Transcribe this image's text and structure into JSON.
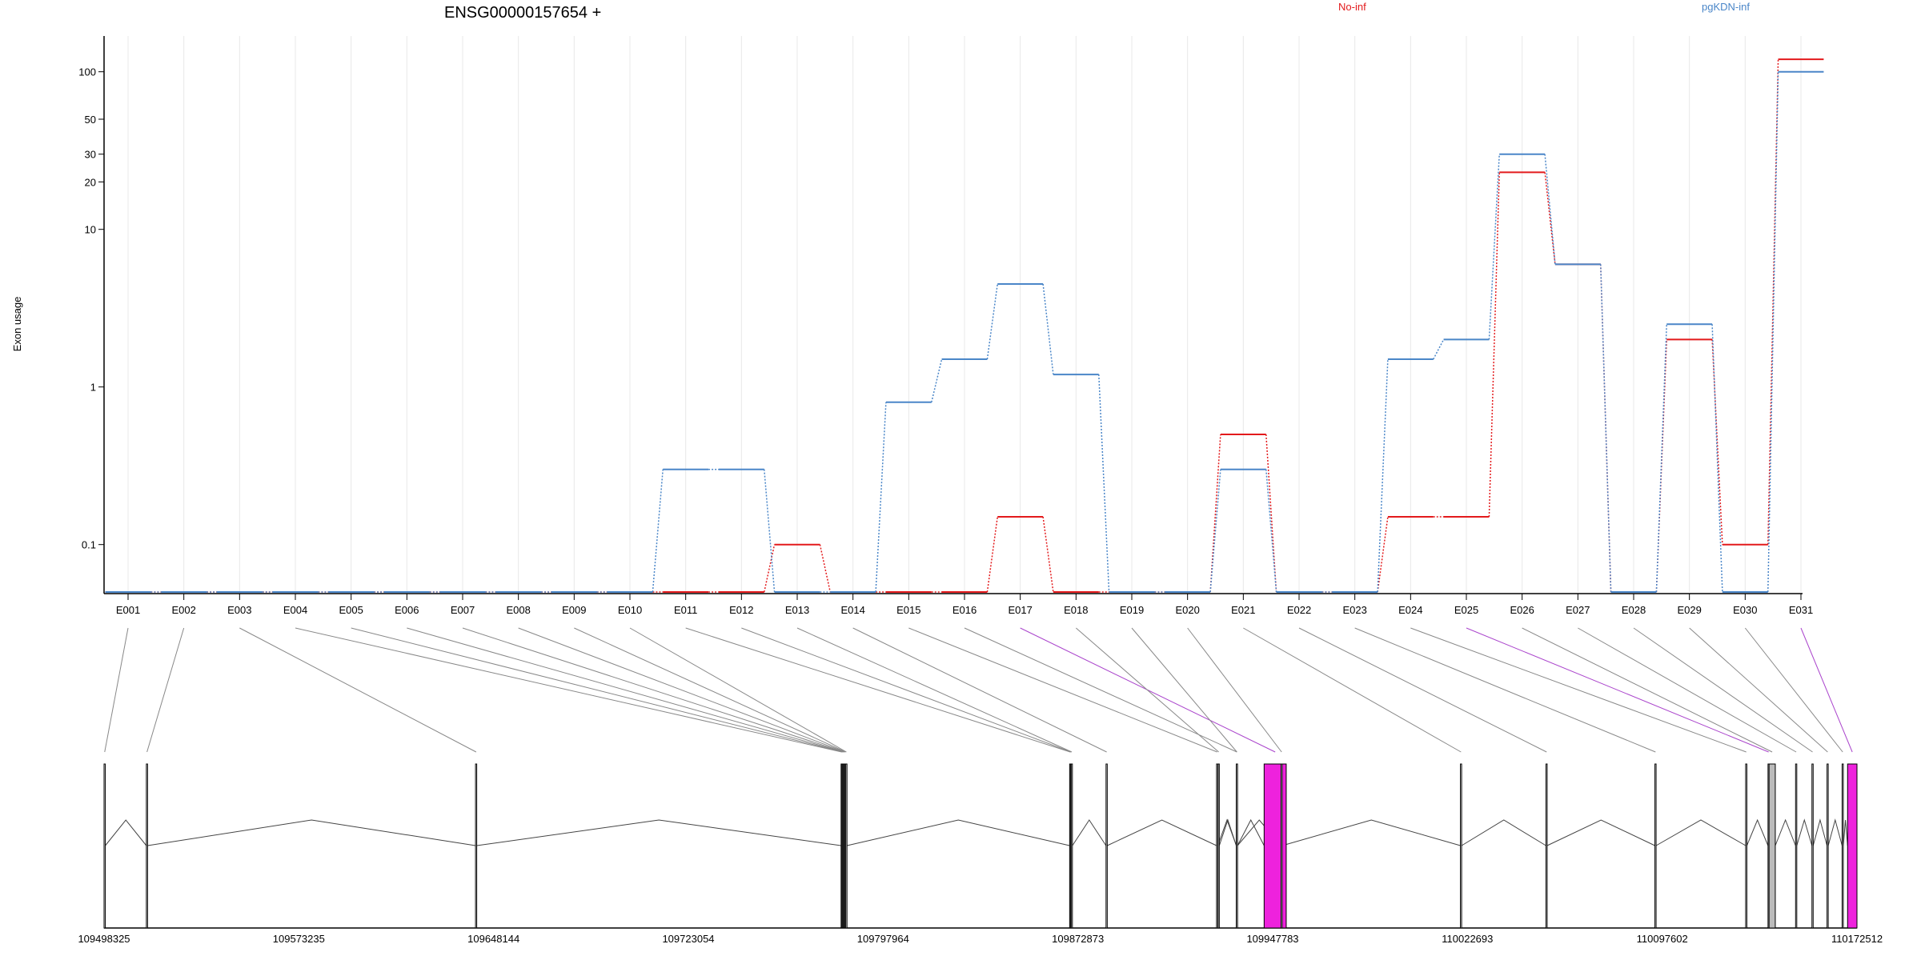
{
  "chart_data": {
    "type": "line",
    "title": "ENSG00000157654 +",
    "ylabel": "Exon usage",
    "y_scale": "log",
    "ylim": [
      0.05,
      150
    ],
    "y_ticks": [
      0.1,
      1,
      10,
      20,
      30,
      50,
      100
    ],
    "y_tick_labels": [
      "0.1",
      "1",
      "10",
      "20",
      "30",
      "50",
      "100"
    ],
    "categories": [
      "E001",
      "E002",
      "E003",
      "E004",
      "E005",
      "E006",
      "E007",
      "E008",
      "E009",
      "E010",
      "E011",
      "E012",
      "E013",
      "E014",
      "E015",
      "E016",
      "E017",
      "E018",
      "E019",
      "E020",
      "E021",
      "E022",
      "E023",
      "E024",
      "E025",
      "E026",
      "E027",
      "E028",
      "E029",
      "E030",
      "E031"
    ],
    "legend_position": "top",
    "series": [
      {
        "name": "No-inf",
        "color": "#e31a1c",
        "values": [
          0.05,
          0.05,
          0.05,
          0.05,
          0.05,
          0.05,
          0.05,
          0.05,
          0.05,
          0.05,
          0.05,
          0.05,
          0.1,
          0.05,
          0.05,
          0.05,
          0.15,
          0.05,
          0.05,
          0.05,
          0.5,
          0.05,
          0.05,
          0.15,
          0.15,
          23,
          6,
          0.05,
          2,
          0.1,
          120
        ]
      },
      {
        "name": "pgKDN-inf",
        "color": "#4a86c8",
        "values": [
          0.05,
          0.05,
          0.05,
          0.05,
          0.05,
          0.05,
          0.05,
          0.05,
          0.05,
          0.05,
          0.3,
          0.3,
          0.05,
          0.05,
          0.8,
          1.5,
          4.5,
          1.2,
          0.05,
          0.05,
          0.3,
          0.05,
          0.05,
          1.5,
          2,
          30,
          6,
          0.05,
          2.5,
          0.05,
          100
        ]
      }
    ],
    "gene_model": {
      "genomic_ticks": [
        "109498325",
        "109573235",
        "109648144",
        "109723054",
        "109797964",
        "109872873",
        "109947783",
        "110022693",
        "110097602",
        "110172512"
      ],
      "genomic_start": 109498325,
      "genomic_end": 110172512,
      "exons": [
        {
          "id": "E001",
          "start": 109498325,
          "end": 109498800,
          "color": "#ffffff",
          "link_color": "#888888"
        },
        {
          "id": "E002",
          "start": 109514600,
          "end": 109515000,
          "color": "#ffffff",
          "link_color": "#888888"
        },
        {
          "id": "E003",
          "start": 109641200,
          "end": 109641600,
          "color": "#ffffff",
          "link_color": "#888888"
        },
        {
          "id": "E004",
          "start": 109781800,
          "end": 109782100,
          "color": "#ffffff",
          "link_color": "#888888"
        },
        {
          "id": "E005",
          "start": 109782100,
          "end": 109782400,
          "color": "#ffffff",
          "link_color": "#888888"
        },
        {
          "id": "E006",
          "start": 109782400,
          "end": 109782700,
          "color": "#ffffff",
          "link_color": "#888888"
        },
        {
          "id": "E007",
          "start": 109782700,
          "end": 109783000,
          "color": "#ffffff",
          "link_color": "#888888"
        },
        {
          "id": "E008",
          "start": 109783000,
          "end": 109783300,
          "color": "#ffffff",
          "link_color": "#888888"
        },
        {
          "id": "E009",
          "start": 109783300,
          "end": 109783600,
          "color": "#ffffff",
          "link_color": "#888888"
        },
        {
          "id": "E010",
          "start": 109783600,
          "end": 109783900,
          "color": "#ffffff",
          "link_color": "#888888"
        },
        {
          "id": "E011",
          "start": 109869700,
          "end": 109870000,
          "color": "#ffffff",
          "link_color": "#888888"
        },
        {
          "id": "E012",
          "start": 109870000,
          "end": 109870300,
          "color": "#ffffff",
          "link_color": "#888888"
        },
        {
          "id": "E013",
          "start": 109870300,
          "end": 109870600,
          "color": "#ffffff",
          "link_color": "#888888"
        },
        {
          "id": "E014",
          "start": 109883700,
          "end": 109884100,
          "color": "#ffffff",
          "link_color": "#888888"
        },
        {
          "id": "E015",
          "start": 109926200,
          "end": 109926500,
          "color": "#ffffff",
          "link_color": "#888888"
        },
        {
          "id": "E016",
          "start": 109933800,
          "end": 109934200,
          "color": "#ffffff",
          "link_color": "#888888"
        },
        {
          "id": "E017",
          "start": 109944500,
          "end": 109953000,
          "color": "#ee22dd",
          "link_color": "#aa44cc"
        },
        {
          "id": "E018",
          "start": 109926800,
          "end": 109927200,
          "color": "#ffffff",
          "link_color": "#888888"
        },
        {
          "id": "E019",
          "start": 109933800,
          "end": 109934200,
          "color": "#ffffff",
          "link_color": "#888888"
        },
        {
          "id": "E020",
          "start": 109951000,
          "end": 109951300,
          "color": "#ffffff",
          "link_color": "#888888"
        },
        {
          "id": "E021",
          "start": 110020000,
          "end": 110020400,
          "color": "#ffffff",
          "link_color": "#888888"
        },
        {
          "id": "E022",
          "start": 110052900,
          "end": 110053300,
          "color": "#ffffff",
          "link_color": "#888888"
        },
        {
          "id": "E023",
          "start": 110094800,
          "end": 110095200,
          "color": "#ffffff",
          "link_color": "#888888"
        },
        {
          "id": "E024",
          "start": 110129700,
          "end": 110130100,
          "color": "#ffffff",
          "link_color": "#888888"
        },
        {
          "id": "E025",
          "start": 110138300,
          "end": 110138700,
          "color": "#ffffff",
          "link_color": "#aa44cc"
        },
        {
          "id": "E026",
          "start": 110138700,
          "end": 110141100,
          "color": "#bbbbbb",
          "link_color": "#888888"
        },
        {
          "id": "E027",
          "start": 110148900,
          "end": 110149300,
          "color": "#ffffff",
          "link_color": "#888888"
        },
        {
          "id": "E028",
          "start": 110155200,
          "end": 110155600,
          "color": "#ffffff",
          "link_color": "#888888"
        },
        {
          "id": "E029",
          "start": 110161000,
          "end": 110161400,
          "color": "#ffffff",
          "link_color": "#888888"
        },
        {
          "id": "E030",
          "start": 110166800,
          "end": 110167200,
          "color": "#ffffff",
          "link_color": "#888888"
        },
        {
          "id": "E031",
          "start": 110168900,
          "end": 110172512,
          "color": "#ee22dd",
          "link_color": "#aa44cc"
        }
      ]
    }
  }
}
